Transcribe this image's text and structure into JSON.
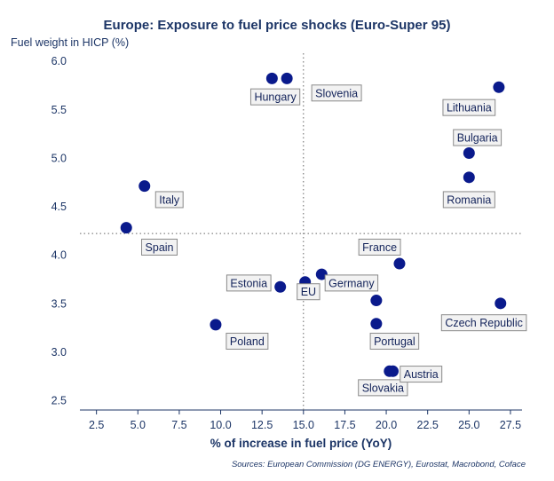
{
  "chart_data": {
    "type": "scatter",
    "title": "Europe: Exposure to fuel price shocks (Euro-Super 95)",
    "ylabel": "Fuel weight in HICP (%)",
    "xlabel": "% of increase in fuel price (YoY)",
    "source": "Sources: European Commission (DG ENERGY), Eurostat, Macrobond, Coface",
    "xlim": [
      1.5,
      28.2
    ],
    "ylim": [
      2.4,
      6.08
    ],
    "xticks": [
      "2.5",
      "5.0",
      "7.5",
      "10.0",
      "12.5",
      "15.0",
      "17.5",
      "20.0",
      "22.5",
      "25.0",
      "27.5"
    ],
    "yticks": [
      "2.5",
      "3.0",
      "3.5",
      "4.0",
      "4.5",
      "5.0",
      "5.5",
      "6.0"
    ],
    "reference_lines": {
      "x": 15.0,
      "y": 4.22
    },
    "marker_color": "#0a1a8c",
    "points": [
      {
        "name": "Hungary",
        "x": 13.1,
        "y": 5.82,
        "lx": 13.3,
        "ly": 5.63
      },
      {
        "name": "Slovenia",
        "x": 14.0,
        "y": 5.82,
        "lx": 17.0,
        "ly": 5.67
      },
      {
        "name": "Lithuania",
        "x": 26.8,
        "y": 5.73,
        "lx": 25.0,
        "ly": 5.52
      },
      {
        "name": "Bulgaria",
        "x": 25.0,
        "y": 5.05,
        "lx": 25.5,
        "ly": 5.21
      },
      {
        "name": "Romania",
        "x": 25.0,
        "y": 4.8,
        "lx": 25.0,
        "ly": 4.57
      },
      {
        "name": "Italy",
        "x": 5.4,
        "y": 4.71,
        "lx": 6.9,
        "ly": 4.57
      },
      {
        "name": "Spain",
        "x": 4.3,
        "y": 4.28,
        "lx": 6.3,
        "ly": 4.08
      },
      {
        "name": "France",
        "x": 20.8,
        "y": 3.91,
        "lx": 19.6,
        "ly": 4.08
      },
      {
        "name": "Germany",
        "x": 16.1,
        "y": 3.8,
        "lx": 17.9,
        "ly": 3.71
      },
      {
        "name": "Estonia",
        "x": 13.6,
        "y": 3.67,
        "lx": 11.7,
        "ly": 3.71
      },
      {
        "name": "EU",
        "x": 15.1,
        "y": 3.72,
        "lx": 15.3,
        "ly": 3.62
      },
      {
        "name": "Czech Republic",
        "x": 26.9,
        "y": 3.5,
        "lx": 25.9,
        "ly": 3.3
      },
      {
        "name": "Portugal",
        "x": 19.4,
        "y": 3.53,
        "lx": 20.5,
        "ly": 3.11
      },
      {
        "name": "Poland",
        "x": 9.7,
        "y": 3.28,
        "lx": 11.6,
        "ly": 3.11
      },
      {
        "name": "Slovakia",
        "x": 19.4,
        "y": 3.29,
        "lx": 19.8,
        "ly": 2.63
      },
      {
        "name": "Austria",
        "x": 20.2,
        "y": 2.8,
        "lx": 22.1,
        "ly": 2.77
      },
      {
        "name": "Austria-2",
        "x": 20.4,
        "y": 2.8,
        "lx": null,
        "ly": null
      }
    ]
  }
}
